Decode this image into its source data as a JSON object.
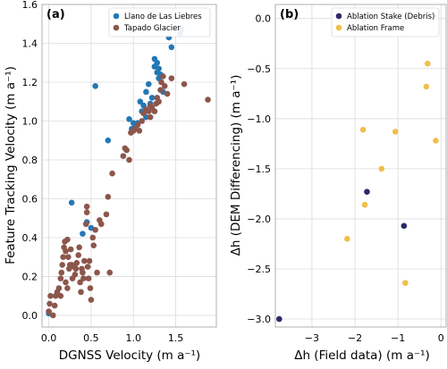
{
  "colors": {
    "llano": "#2378b5",
    "tapado": "#8c564b",
    "debris": "#2a2a6a",
    "frame": "#f0bf4c"
  },
  "chart_data": [
    {
      "type": "scatter",
      "panel_label": "(a)",
      "xlabel": "DGNSS Velocity (m a⁻¹)",
      "ylabel": "Feature Tracking Velocity (m a⁻¹)",
      "xlim": [
        -0.08,
        1.98
      ],
      "ylim": [
        -0.06,
        1.6
      ],
      "xticks": [
        0.0,
        0.5,
        1.0,
        1.5
      ],
      "xtick_labels": [
        "0.0",
        "0.5",
        "1.0",
        "1.5"
      ],
      "yticks": [
        0.0,
        0.2,
        0.4,
        0.6,
        0.8,
        1.0,
        1.2,
        1.4,
        1.6
      ],
      "ytick_labels": [
        "0.0",
        "0.2",
        "0.4",
        "0.6",
        "0.8",
        "1.0",
        "1.2",
        "1.4",
        "1.6"
      ],
      "grid": true,
      "legend_position": "upper right",
      "series": [
        {
          "name": "Llano de Las Liebres",
          "color_key": "llano",
          "points": [
            [
              0.0,
              0.01
            ],
            [
              0.27,
              0.58
            ],
            [
              0.4,
              0.42
            ],
            [
              0.45,
              0.48
            ],
            [
              0.5,
              0.45
            ],
            [
              0.55,
              1.18
            ],
            [
              0.7,
              0.9
            ],
            [
              0.95,
              1.01
            ],
            [
              0.98,
              0.96
            ],
            [
              1.0,
              0.99
            ],
            [
              1.02,
              0.97
            ],
            [
              1.05,
              0.99
            ],
            [
              1.08,
              1.1
            ],
            [
              1.1,
              1.05
            ],
            [
              1.12,
              1.08
            ],
            [
              1.15,
              1.15
            ],
            [
              1.15,
              1.02
            ],
            [
              1.18,
              1.19
            ],
            [
              1.2,
              1.09
            ],
            [
              1.22,
              1.12
            ],
            [
              1.25,
              1.28
            ],
            [
              1.25,
              1.32
            ],
            [
              1.28,
              1.3
            ],
            [
              1.28,
              1.25
            ],
            [
              1.3,
              1.22
            ],
            [
              1.3,
              1.27
            ],
            [
              1.32,
              1.24
            ],
            [
              1.35,
              1.15
            ],
            [
              1.42,
              1.43
            ],
            [
              1.45,
              1.38
            ],
            [
              1.55,
              1.45
            ],
            [
              1.57,
              1.47
            ]
          ]
        },
        {
          "name": "Tapado Glacier",
          "color_key": "tapado",
          "points": [
            [
              0.0,
              0.02
            ],
            [
              0.01,
              0.06
            ],
            [
              0.02,
              0.1
            ],
            [
              0.05,
              0.0
            ],
            [
              0.07,
              0.05
            ],
            [
              0.08,
              0.1
            ],
            [
              0.1,
              0.12
            ],
            [
              0.12,
              0.14
            ],
            [
              0.14,
              0.1
            ],
            [
              0.14,
              0.19
            ],
            [
              0.15,
              0.22
            ],
            [
              0.16,
              0.26
            ],
            [
              0.17,
              0.3
            ],
            [
              0.18,
              0.35
            ],
            [
              0.19,
              0.38
            ],
            [
              0.2,
              0.33
            ],
            [
              0.2,
              0.17
            ],
            [
              0.22,
              0.14
            ],
            [
              0.22,
              0.39
            ],
            [
              0.23,
              0.3
            ],
            [
              0.24,
              0.24
            ],
            [
              0.25,
              0.26
            ],
            [
              0.26,
              0.34
            ],
            [
              0.27,
              0.26
            ],
            [
              0.28,
              0.19
            ],
            [
              0.3,
              0.25
            ],
            [
              0.31,
              0.21
            ],
            [
              0.32,
              0.24
            ],
            [
              0.33,
              0.27
            ],
            [
              0.35,
              0.31
            ],
            [
              0.36,
              0.35
            ],
            [
              0.37,
              0.17
            ],
            [
              0.38,
              0.12
            ],
            [
              0.39,
              0.24
            ],
            [
              0.4,
              0.22
            ],
            [
              0.41,
              0.19
            ],
            [
              0.42,
              0.28
            ],
            [
              0.44,
              0.47
            ],
            [
              0.45,
              0.53
            ],
            [
              0.45,
              0.56
            ],
            [
              0.46,
              0.25
            ],
            [
              0.47,
              0.19
            ],
            [
              0.48,
              0.28
            ],
            [
              0.49,
              0.14
            ],
            [
              0.5,
              0.08
            ],
            [
              0.52,
              0.4
            ],
            [
              0.53,
              0.36
            ],
            [
              0.55,
              0.44
            ],
            [
              0.57,
              0.22
            ],
            [
              0.6,
              0.49
            ],
            [
              0.62,
              0.47
            ],
            [
              0.68,
              0.52
            ],
            [
              0.7,
              0.61
            ],
            [
              0.72,
              0.22
            ],
            [
              0.75,
              0.73
            ],
            [
              0.88,
              0.82
            ],
            [
              0.9,
              0.86
            ],
            [
              0.92,
              0.85
            ],
            [
              0.95,
              0.8
            ],
            [
              0.97,
              0.94
            ],
            [
              1.0,
              0.95
            ],
            [
              1.02,
              0.96
            ],
            [
              1.05,
              0.98
            ],
            [
              1.07,
              0.95
            ],
            [
              1.1,
              1.0
            ],
            [
              1.12,
              1.04
            ],
            [
              1.15,
              1.06
            ],
            [
              1.18,
              1.05
            ],
            [
              1.2,
              1.08
            ],
            [
              1.2,
              1.02
            ],
            [
              1.22,
              1.07
            ],
            [
              1.25,
              1.05
            ],
            [
              1.27,
              1.09
            ],
            [
              1.28,
              1.12
            ],
            [
              1.3,
              1.1
            ],
            [
              1.32,
              1.16
            ],
            [
              1.33,
              1.2
            ],
            [
              1.35,
              1.23
            ],
            [
              1.37,
              1.18
            ],
            [
              1.4,
              1.14
            ],
            [
              1.45,
              1.22
            ],
            [
              1.6,
              1.19
            ],
            [
              1.88,
              1.11
            ]
          ]
        }
      ]
    },
    {
      "type": "scatter",
      "panel_label": "(b)",
      "xlabel": "Δh (Field data) (m a⁻¹)",
      "ylabel": "Δh (DEM Differencing) (m a⁻¹)",
      "xlim": [
        -3.85,
        0.12
      ],
      "ylim": [
        -3.08,
        0.14
      ],
      "xticks": [
        -3,
        -2,
        -1,
        0
      ],
      "xtick_labels": [
        "−3",
        "−2",
        "−1",
        "0"
      ],
      "yticks": [
        0.0,
        -0.5,
        -1.0,
        -1.5,
        -2.0,
        -2.5,
        -3.0
      ],
      "ytick_labels": [
        "0.0",
        "−0.5",
        "−1.0",
        "−1.5",
        "−2.0",
        "−2.5",
        "−3.0"
      ],
      "grid": true,
      "legend_position": "upper right",
      "series": [
        {
          "name": "Ablation Stake (Debris)",
          "color_key": "debris",
          "points": [
            [
              -3.76,
              -3.0
            ],
            [
              -1.72,
              -1.73
            ],
            [
              -0.86,
              -2.07
            ]
          ]
        },
        {
          "name": "Ablation Frame",
          "color_key": "frame",
          "points": [
            [
              -0.31,
              -0.45
            ],
            [
              -0.34,
              -0.68
            ],
            [
              -0.12,
              -1.22
            ],
            [
              -1.81,
              -1.11
            ],
            [
              -1.06,
              -1.13
            ],
            [
              -1.38,
              -1.5
            ],
            [
              -1.77,
              -1.86
            ],
            [
              -2.18,
              -2.2
            ],
            [
              -0.83,
              -2.64
            ]
          ]
        }
      ]
    }
  ]
}
